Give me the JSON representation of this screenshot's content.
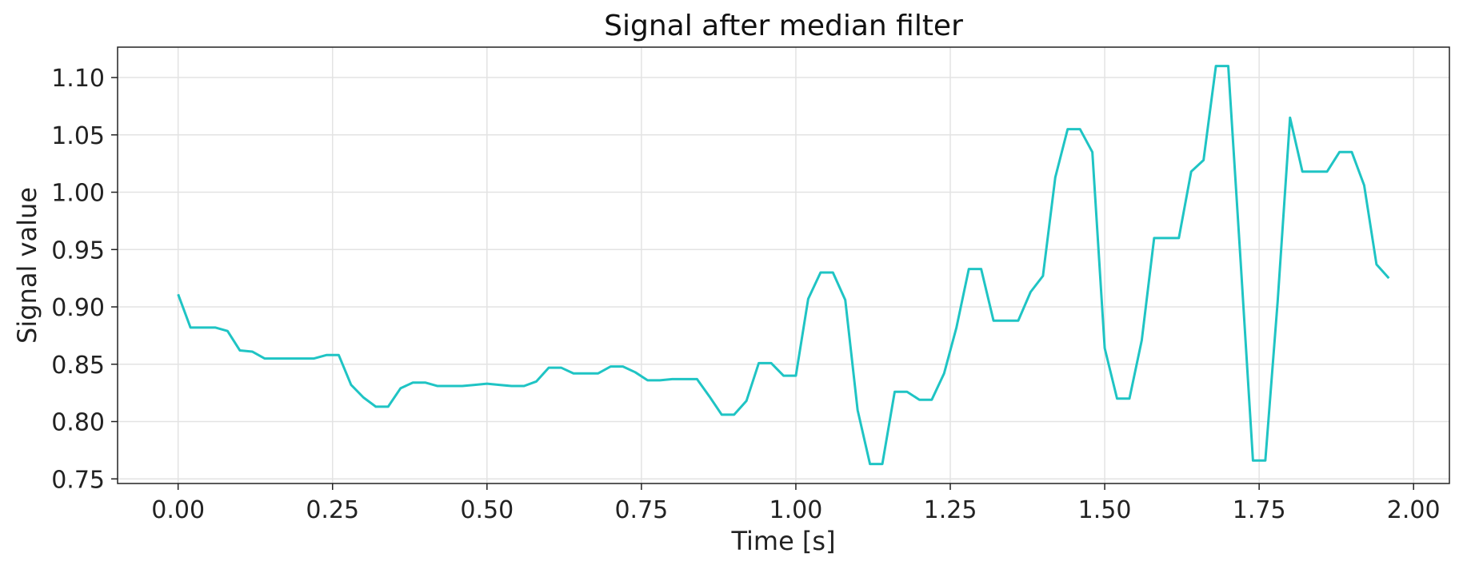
{
  "chart_data": {
    "type": "line",
    "title": "Signal after median filter",
    "xlabel": "Time [s]",
    "ylabel": "Signal value",
    "xlim": [
      -0.098,
      2.058
    ],
    "ylim": [
      0.746,
      1.1265
    ],
    "x_ticks": [
      "0.00",
      "0.25",
      "0.50",
      "0.75",
      "1.00",
      "1.25",
      "1.50",
      "1.75",
      "2.00"
    ],
    "y_ticks": [
      "0.75",
      "0.80",
      "0.85",
      "0.90",
      "0.95",
      "1.00",
      "1.05",
      "1.10"
    ],
    "grid": true,
    "line_color": "#1fc4c4",
    "series": [
      {
        "x": [
          0.0,
          0.02,
          0.04,
          0.06,
          0.08,
          0.1,
          0.12,
          0.14,
          0.16,
          0.18,
          0.2,
          0.22,
          0.24,
          0.26,
          0.28,
          0.3,
          0.32,
          0.34,
          0.36,
          0.38,
          0.4,
          0.42,
          0.44,
          0.46,
          0.48,
          0.5,
          0.52,
          0.54,
          0.56,
          0.58,
          0.6,
          0.62,
          0.64,
          0.66,
          0.68,
          0.7,
          0.72,
          0.74,
          0.76,
          0.78,
          0.8,
          0.82,
          0.84,
          0.86,
          0.88,
          0.9,
          0.92,
          0.94,
          0.96,
          0.98,
          1.0,
          1.02,
          1.04,
          1.06,
          1.08,
          1.1,
          1.12,
          1.14,
          1.16,
          1.18,
          1.2,
          1.22,
          1.24,
          1.26,
          1.28,
          1.3,
          1.32,
          1.34,
          1.36,
          1.38,
          1.4,
          1.42,
          1.44,
          1.46,
          1.48,
          1.5,
          1.52,
          1.54,
          1.56,
          1.58,
          1.6,
          1.62,
          1.64,
          1.66,
          1.68,
          1.7,
          1.72,
          1.74,
          1.76,
          1.78,
          1.8,
          1.82,
          1.84,
          1.86,
          1.88,
          1.9,
          1.92,
          1.94,
          1.96
        ],
        "y": [
          0.911,
          0.882,
          0.882,
          0.882,
          0.879,
          0.862,
          0.861,
          0.855,
          0.855,
          0.855,
          0.855,
          0.855,
          0.858,
          0.858,
          0.832,
          0.821,
          0.813,
          0.813,
          0.829,
          0.834,
          0.834,
          0.831,
          0.831,
          0.831,
          0.832,
          0.833,
          0.832,
          0.831,
          0.831,
          0.835,
          0.847,
          0.847,
          0.842,
          0.842,
          0.842,
          0.848,
          0.848,
          0.843,
          0.836,
          0.836,
          0.837,
          0.837,
          0.837,
          0.822,
          0.806,
          0.806,
          0.818,
          0.851,
          0.851,
          0.84,
          0.84,
          0.907,
          0.93,
          0.93,
          0.906,
          0.81,
          0.763,
          0.763,
          0.826,
          0.826,
          0.819,
          0.819,
          0.842,
          0.882,
          0.933,
          0.933,
          0.888,
          0.888,
          0.888,
          0.913,
          0.927,
          1.013,
          1.055,
          1.055,
          1.035,
          0.864,
          0.82,
          0.82,
          0.871,
          0.96,
          0.96,
          0.96,
          1.018,
          1.028,
          1.11,
          1.11,
          0.94,
          0.766,
          0.766,
          0.905,
          1.065,
          1.018,
          1.018,
          1.018,
          1.035,
          1.035,
          1.006,
          0.937,
          0.925
        ]
      }
    ]
  }
}
